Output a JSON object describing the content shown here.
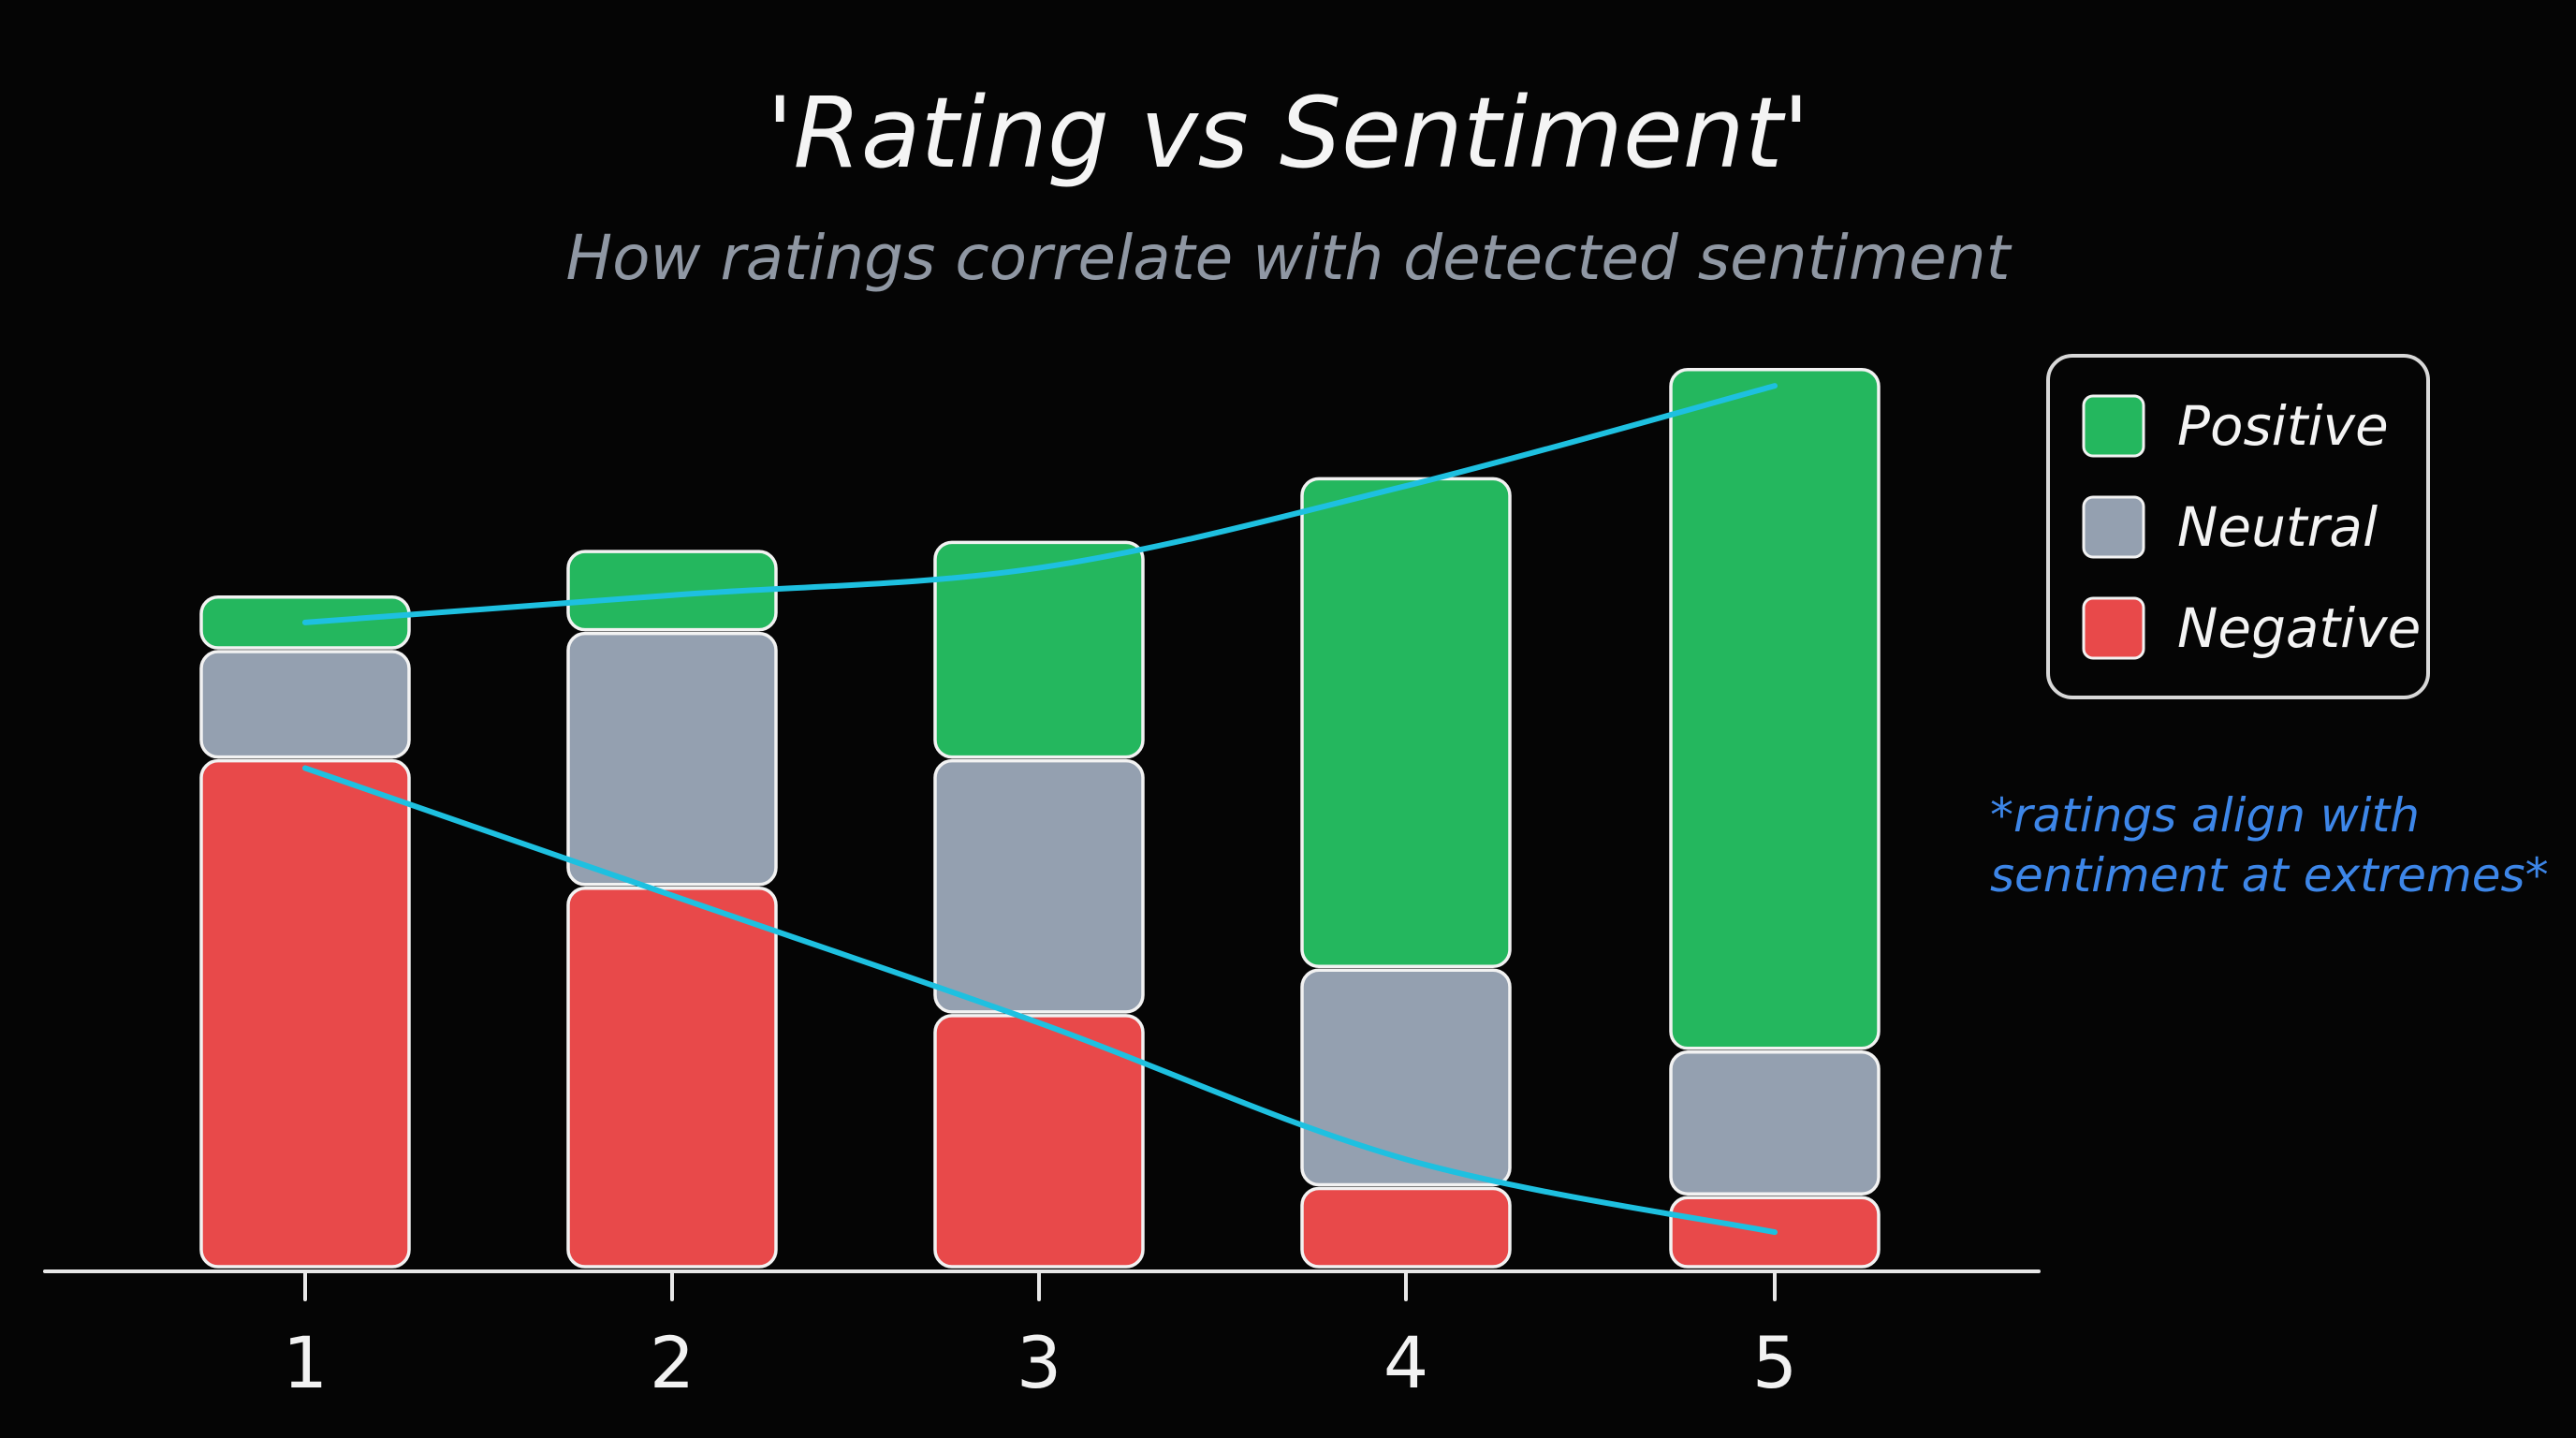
{
  "chart_data": {
    "type": "bar",
    "stacked": true,
    "title": "'Rating vs Sentiment'",
    "subtitle": "How ratings correlate with detected sentiment",
    "categories": [
      "1",
      "2",
      "3",
      "4",
      "5"
    ],
    "series": [
      {
        "name": "Negative",
        "color": "#e8494a",
        "values": [
          56,
          42,
          28,
          9,
          8
        ]
      },
      {
        "name": "Neutral",
        "color": "#94a0b0",
        "values": [
          12,
          28,
          28,
          24,
          16
        ]
      },
      {
        "name": "Positive",
        "color": "#24b75e",
        "values": [
          6,
          9,
          24,
          54,
          75
        ]
      }
    ],
    "ylim": [
      0,
      100
    ],
    "grid": false,
    "legend": "top-right",
    "trend_lines": [
      {
        "series": "Positive",
        "color": "#1ec0e0",
        "values": [
          71,
          74,
          77,
          86,
          97
        ]
      },
      {
        "series": "Negative",
        "color": "#1ec0e0",
        "values": [
          55,
          41,
          27,
          12,
          4
        ]
      }
    ],
    "annotation": {
      "lines": [
        "*ratings align with",
        "sentiment at extremes*"
      ],
      "color": "#3d86e8"
    }
  }
}
